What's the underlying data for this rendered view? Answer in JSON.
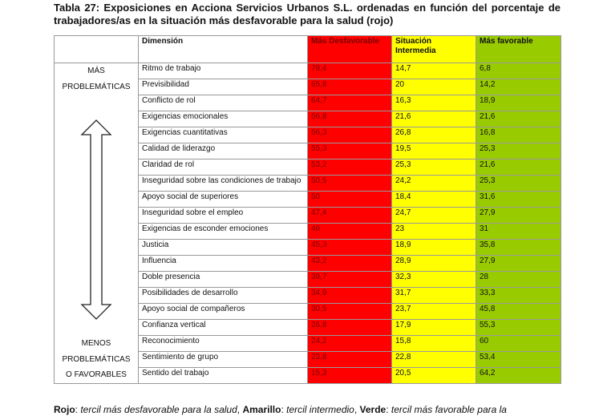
{
  "title": "Tabla 27: Exposiciones en Acciona Servicios Urbanos S.L. ordenadas en función del porcentaje de trabajadores/as en la situación más desfavorable para la salud (rojo)",
  "table": {
    "header": [
      "Dimensión",
      "Más Desfavorable",
      "Situación Intermedia",
      "Más favorable"
    ],
    "side_top": [
      "MÁS",
      "PROBLEMÁTICAS"
    ],
    "side_bottom": [
      "MENOS",
      "PROBLEMÁTICAS",
      "O FAVORABLES"
    ],
    "rows": [
      [
        "Ritmo de trabajo",
        "78,4",
        "14,7",
        "6,8"
      ],
      [
        "Previsibilidad",
        "65,8",
        "20",
        "14,2"
      ],
      [
        "Conflicto de rol",
        "64,7",
        "16,3",
        "18,9"
      ],
      [
        "Exigencias emocionales",
        "56,8",
        "21,6",
        "21,6"
      ],
      [
        "Exigencias cuantitativas",
        "56,3",
        "26,8",
        "16,8"
      ],
      [
        "Calidad de liderazgo",
        "55,3",
        "19,5",
        "25,3"
      ],
      [
        "Claridad de rol",
        "53,2",
        "25,3",
        "21,6"
      ],
      [
        "Inseguridad sobre las condiciones de trabajo",
        "50,5",
        "24,2",
        "25,3"
      ],
      [
        "Apoyo social de superiores",
        "50",
        "18,4",
        "31,6"
      ],
      [
        "Inseguridad sobre el empleo",
        "47,4",
        "24,7",
        "27,9"
      ],
      [
        "Exigencias de esconder emociones",
        "46",
        "23",
        "31"
      ],
      [
        "Justicia",
        "45,3",
        "18,9",
        "35,8"
      ],
      [
        "Influencia",
        "43,2",
        "28,9",
        "27,9"
      ],
      [
        "Doble presencia",
        "39,7",
        "32,3",
        "28"
      ],
      [
        "Posibilidades de desarrollo",
        "34,9",
        "31,7",
        "33,3"
      ],
      [
        "Apoyo social de compañeros",
        "30,5",
        "23,7",
        "45,8"
      ],
      [
        "Confianza vertical",
        "26,8",
        "17,9",
        "55,3"
      ],
      [
        "Reconocimiento",
        "24,2",
        "15,8",
        "60"
      ],
      [
        "Sentimiento de grupo",
        "23,8",
        "22,8",
        "53,4"
      ],
      [
        "Sentido del trabajo",
        "15,3",
        "20,5",
        "64,2"
      ]
    ]
  },
  "footer": [
    {
      "text": "Rojo",
      "bold": true
    },
    {
      "text": ": ",
      "bold": false
    },
    {
      "text": "tercil más desfavorable para la salud",
      "italic": true
    },
    {
      "text": ", ",
      "bold": false
    },
    {
      "text": "Amarillo",
      "bold": true
    },
    {
      "text": ": ",
      "bold": false
    },
    {
      "text": "tercil intermedio",
      "italic": true
    },
    {
      "text": ", ",
      "bold": false
    },
    {
      "text": "Verde",
      "bold": true
    },
    {
      "text": ": ",
      "bold": false
    },
    {
      "text": "tercil más favorable para la",
      "italic": true
    }
  ]
}
